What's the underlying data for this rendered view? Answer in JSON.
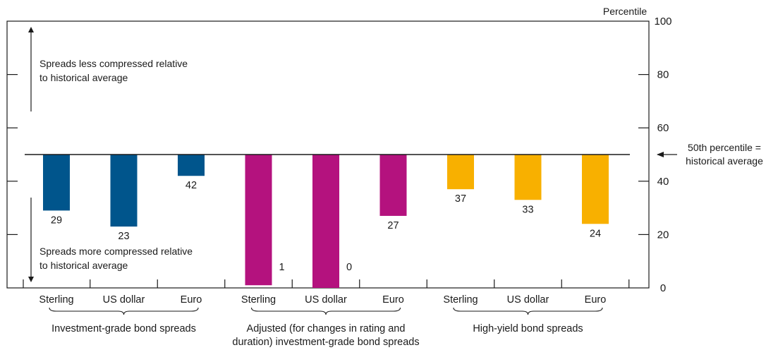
{
  "chart_data": {
    "type": "bar",
    "unit_label": "Percentile",
    "ylim": [
      0,
      100
    ],
    "yticks": [
      0,
      20,
      40,
      60,
      80,
      100
    ],
    "y_axis_side": "right",
    "reference_line": {
      "value": 50,
      "label_lines": [
        "50th percentile =",
        "historical average"
      ]
    },
    "annotations": {
      "upper": [
        "Spreads less compressed relative",
        "to historical average"
      ],
      "lower": [
        "Spreads more compressed relative",
        "to historical average"
      ]
    },
    "groups": [
      {
        "label_lines": [
          "Investment-grade bond spreads"
        ],
        "color": "#00558c",
        "categories": [
          "Sterling",
          "US dollar",
          "Euro"
        ],
        "values": [
          29,
          23,
          42
        ]
      },
      {
        "label_lines": [
          "Adjusted (for changes in rating and",
          "duration) investment-grade bond spreads"
        ],
        "color": "#b4127e",
        "categories": [
          "Sterling",
          "US dollar",
          "Euro"
        ],
        "values": [
          1,
          0,
          27
        ]
      },
      {
        "label_lines": [
          "High-yield bond spreads"
        ],
        "color": "#f8b000",
        "categories": [
          "Sterling",
          "US dollar",
          "Euro"
        ],
        "values": [
          37,
          33,
          24
        ]
      }
    ]
  }
}
